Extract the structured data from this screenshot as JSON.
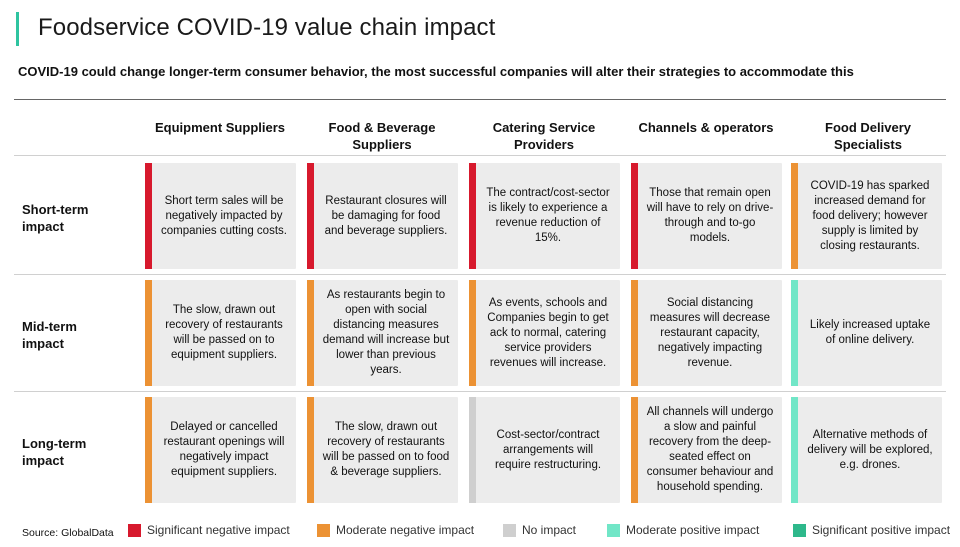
{
  "title": "Foodservice COVID-19 value chain impact",
  "subtitle": "COVID-19 could change longer-term consumer behavior, the most successful companies will alter their strategies to accommodate this",
  "columns": [
    "Equipment Suppliers",
    "Food & Beverage Suppliers",
    "Catering Service Providers",
    "Channels & operators",
    "Food Delivery Specialists"
  ],
  "rows": [
    {
      "label": "Short-term impact",
      "cells": [
        {
          "text": "Short term sales will be negatively impacted by companies cutting costs.",
          "impact": "significant_negative"
        },
        {
          "text": "Restaurant closures will be damaging for food and beverage suppliers.",
          "impact": "significant_negative"
        },
        {
          "text": "The contract/cost-sector is likely to experience a revenue reduction of 15%.",
          "impact": "significant_negative"
        },
        {
          "text": "Those that remain open will have to rely on drive-through and to-go models.",
          "impact": "significant_negative"
        },
        {
          "text": "COVID-19 has sparked increased demand for food delivery; however supply is limited by closing restaurants.",
          "impact": "moderate_negative"
        }
      ]
    },
    {
      "label": "Mid-term impact",
      "cells": [
        {
          "text": "The slow, drawn out recovery of restaurants will be passed on to equipment suppliers.",
          "impact": "moderate_negative"
        },
        {
          "text": "As restaurants begin to open with social distancing measures demand will increase but lower than previous years.",
          "impact": "moderate_negative"
        },
        {
          "text": "As events, schools and Companies begin to get ack to normal, catering service providers revenues will increase.",
          "impact": "moderate_negative"
        },
        {
          "text": "Social distancing measures will decrease restaurant capacity, negatively impacting revenue.",
          "impact": "moderate_negative"
        },
        {
          "text": "Likely increased uptake of online delivery.",
          "impact": "moderate_positive"
        }
      ]
    },
    {
      "label": "Long-term impact",
      "cells": [
        {
          "text": "Delayed or cancelled restaurant openings will negatively impact equipment suppliers.",
          "impact": "moderate_negative"
        },
        {
          "text": "The slow, drawn out recovery of restaurants will be passed on to food & beverage suppliers.",
          "impact": "moderate_negative"
        },
        {
          "text": "Cost-sector/contract arrangements will require restructuring.",
          "impact": "no_impact"
        },
        {
          "text": "All channels will undergo a slow and painful recovery from the deep-seated effect on consumer behaviour and household spending.",
          "impact": "moderate_negative"
        },
        {
          "text": "Alternative methods of delivery will be explored, e.g. drones.",
          "impact": "moderate_positive"
        }
      ]
    }
  ],
  "legend": [
    {
      "key": "significant_negative",
      "label": "Significant negative impact",
      "color": "#d7192d"
    },
    {
      "key": "moderate_negative",
      "label": "Moderate negative impact",
      "color": "#ec9234"
    },
    {
      "key": "no_impact",
      "label": "No impact",
      "color": "#cfcfcf"
    },
    {
      "key": "moderate_positive",
      "label": "Moderate positive impact",
      "color": "#71e6c7"
    },
    {
      "key": "significant_positive",
      "label": "Significant positive impact",
      "color": "#2eb88b"
    }
  ],
  "source": "Source: GlobalData"
}
